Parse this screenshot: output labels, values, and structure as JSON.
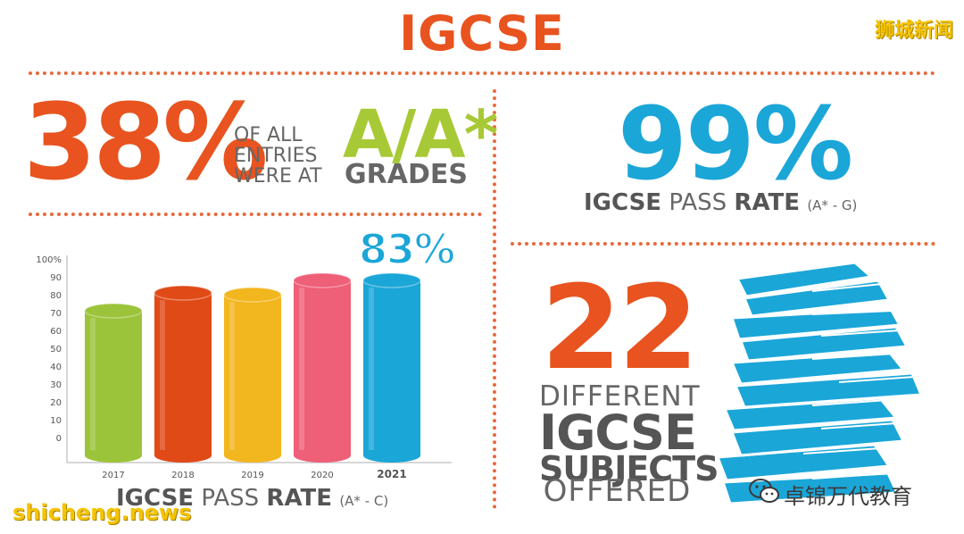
{
  "title": "IGCSE",
  "watermarks": {
    "top_right": "狮城新闻",
    "bottom_left": "shicheng.news",
    "wechat_account": "卓锦万代教育"
  },
  "stat_grades": {
    "value": "38%",
    "text_lines": [
      "OF ALL",
      "ENTRIES",
      "WERE AT"
    ],
    "grade": "A/A*",
    "grade_word": "GRADES"
  },
  "stat_pass_g": {
    "value": "99%",
    "label_bold": "IGCSE",
    "label_light": "PASS",
    "label_bold2": "RATE",
    "grade_range": "(A* - G)"
  },
  "stat_subjects": {
    "value": "22",
    "lines": [
      "DIFFERENT",
      "IGCSE",
      "SUBJECTS",
      "OFFERED"
    ]
  },
  "highlight_label": "83%",
  "colors": {
    "orange": "#e8531f",
    "blue": "#1ba6d8",
    "green": "#a8c936",
    "gray": "#666666"
  },
  "chart_data": {
    "type": "bar",
    "title": "",
    "categories": [
      "2017",
      "2018",
      "2019",
      "2020",
      "2021"
    ],
    "values": [
      71,
      81,
      80,
      88,
      88
    ],
    "bar_colors": [
      "#9cc43a",
      "#e04a17",
      "#f2b61f",
      "#ee5f78",
      "#1ba6d8"
    ],
    "xlabel": "",
    "ylabel": "",
    "ylim": [
      0,
      100
    ],
    "yticks": [
      "100%",
      "90",
      "80",
      "70",
      "60",
      "50",
      "40",
      "30",
      "20",
      "10",
      "0"
    ],
    "caption": {
      "bold": "IGCSE",
      "light": "PASS",
      "bold2": "RATE",
      "grade_range": "(A* - C)"
    }
  }
}
